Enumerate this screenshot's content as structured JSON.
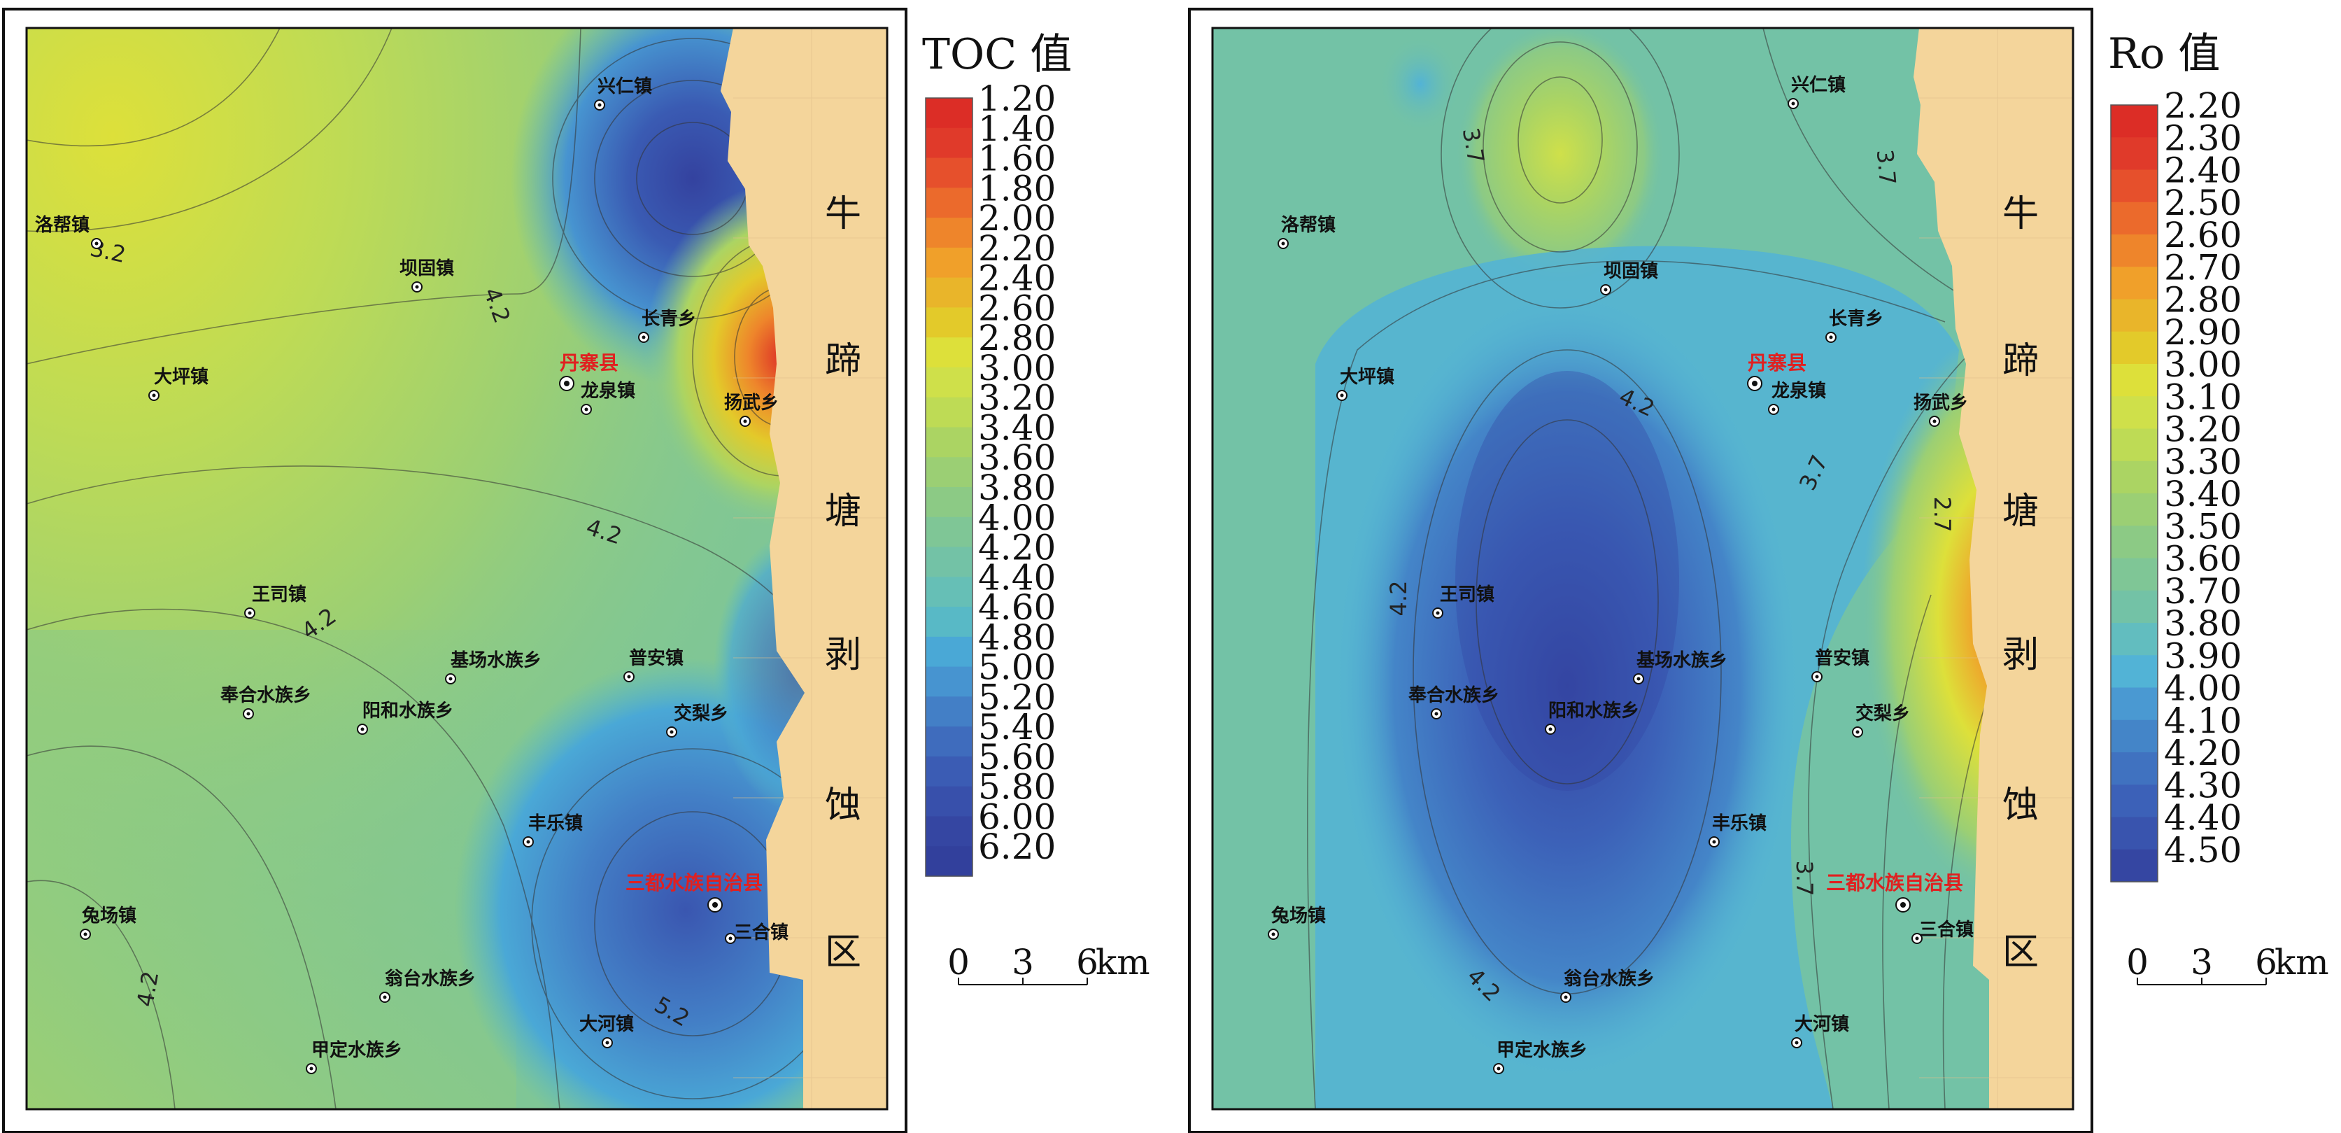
{
  "maps": [
    {
      "id": "toc",
      "legend": {
        "title": "TOC 值",
        "labels": [
          "1.20",
          "1.40",
          "1.60",
          "1.80",
          "2.00",
          "2.20",
          "2.40",
          "2.60",
          "2.80",
          "3.00",
          "3.20",
          "3.40",
          "3.60",
          "3.80",
          "4.00",
          "4.20",
          "4.40",
          "4.60",
          "4.80",
          "5.00",
          "5.20",
          "5.40",
          "5.60",
          "5.80",
          "6.00",
          "6.20"
        ],
        "colors": [
          "#dc2d26",
          "#e03a2a",
          "#e6502c",
          "#eb6a2c",
          "#ee852b",
          "#f0a02a",
          "#e9b52a",
          "#e3ca2a",
          "#dde03a",
          "#cfe04a",
          "#bedb55",
          "#abd463",
          "#9bcf74",
          "#8cca85",
          "#7fc696",
          "#73c2a6",
          "#66bfb6",
          "#58b9c6",
          "#4aa8d6",
          "#4794d0",
          "#437fc6",
          "#3f6cbd",
          "#3b5cb4",
          "#3850ab",
          "#3546a2",
          "#32409c"
        ]
      },
      "scale": {
        "ticks": [
          "0",
          "3",
          "6"
        ],
        "unit": "km"
      },
      "zone_chars": [
        "牛",
        "蹄",
        "塘",
        "剥",
        "蚀",
        "区"
      ],
      "contour_labels": [
        "3.2",
        "4.2",
        "4.2",
        "4.2",
        "4.2",
        "5.2"
      ],
      "towns": [
        "兴仁镇",
        "洛帮镇",
        "坝固镇",
        "长青乡",
        "大坪镇",
        "龙泉镇",
        "扬武乡",
        "王司镇",
        "基场水族乡",
        "普安镇",
        "奉合水族乡",
        "阳和水族乡",
        "交梨乡",
        "丰乐镇",
        "三合镇",
        "兔场镇",
        "翁台水族乡",
        "大河镇",
        "甲定水族乡"
      ],
      "counties": [
        "丹寨县",
        "三都水族自治县"
      ]
    },
    {
      "id": "ro",
      "legend": {
        "title": "Ro 值",
        "labels": [
          "2.20",
          "2.30",
          "2.40",
          "2.50",
          "2.60",
          "2.70",
          "2.80",
          "2.90",
          "3.00",
          "3.10",
          "3.20",
          "3.30",
          "3.40",
          "3.50",
          "3.60",
          "3.70",
          "3.80",
          "3.90",
          "4.00",
          "4.10",
          "4.20",
          "4.30",
          "4.40",
          "4.50"
        ],
        "colors": [
          "#dc2d26",
          "#e03a2a",
          "#e6502c",
          "#eb6a2c",
          "#ee852b",
          "#f0a02a",
          "#e9b52a",
          "#e3ca2a",
          "#dde03a",
          "#cfe04a",
          "#bedb55",
          "#abd463",
          "#9bcf74",
          "#8cca85",
          "#7fc696",
          "#73c2a6",
          "#62bdbf",
          "#52b3d6",
          "#4a99d2",
          "#4485c8",
          "#4072c0",
          "#3c61b8",
          "#3954ae",
          "#3546a2"
        ]
      },
      "scale": {
        "ticks": [
          "0",
          "3",
          "6"
        ],
        "unit": "km"
      },
      "zone_chars": [
        "牛",
        "蹄",
        "塘",
        "剥",
        "蚀",
        "区"
      ],
      "contour_labels": [
        "3.7",
        "3.7",
        "4.2",
        "3.7",
        "2.7",
        "4.2",
        "3.7",
        "4.2"
      ],
      "towns": [
        "兴仁镇",
        "洛帮镇",
        "坝固镇",
        "长青乡",
        "大坪镇",
        "龙泉镇",
        "扬武乡",
        "王司镇",
        "基场水族乡",
        "普安镇",
        "奉合水族乡",
        "阳和水族乡",
        "交梨乡",
        "丰乐镇",
        "三合镇",
        "兔场镇",
        "翁台水族乡",
        "大河镇",
        "甲定水族乡"
      ],
      "counties": [
        "丹寨县",
        "三都水族自治县"
      ]
    }
  ]
}
